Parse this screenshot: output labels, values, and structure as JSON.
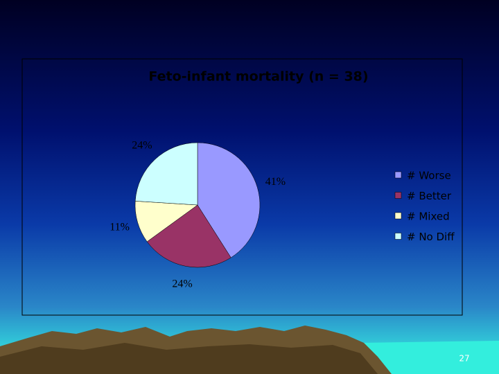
{
  "chart_data": {
    "type": "pie",
    "title": "Feto-infant mortality (n = 38)",
    "categories": [
      "# Worse",
      "# Better",
      "# Mixed",
      "# No Diff"
    ],
    "values": [
      41,
      24,
      11,
      24
    ],
    "value_labels": [
      "41%",
      "24%",
      "11%",
      "24%"
    ],
    "colors": [
      "#9999ff",
      "#993366",
      "#ffffcc",
      "#ccffff"
    ],
    "legend": "right"
  },
  "slide_number": "27"
}
